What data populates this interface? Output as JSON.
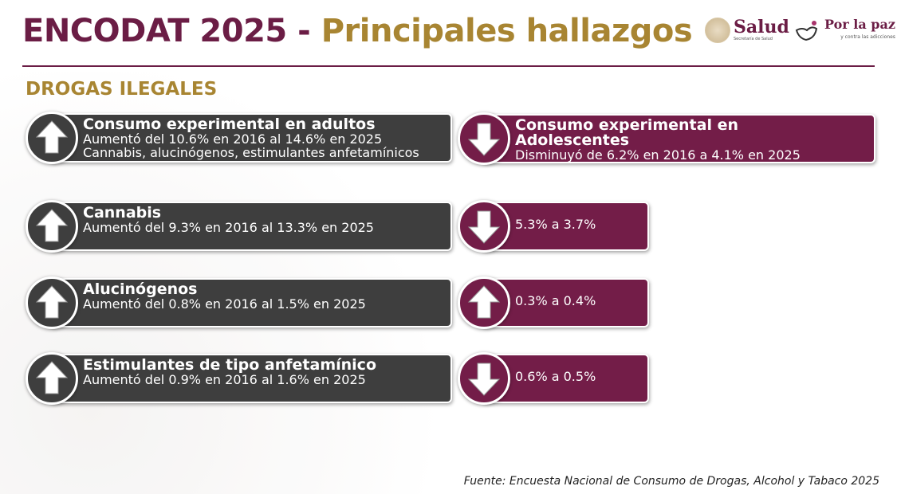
{
  "header": {
    "title_part1": "ENCODAT 2025 -",
    "title_part2": "Principales hallazgos",
    "logo_salud": "Salud",
    "logo_salud_sub": "Secretaría de Salud",
    "logo_paz": "Por la paz",
    "logo_paz_sub": "y contra las adicciones"
  },
  "section": "DROGAS ILEGALES",
  "colors": {
    "maroon": "#731d48",
    "gold": "#a88532",
    "dark": "#3e3e3e"
  },
  "adults": [
    {
      "title": "Consumo experimental en adultos",
      "lines": [
        "Aumentó del 10.6% en 2016 al 14.6% en 2025",
        "Cannabis, alucinógenos, estimulantes anfetamínicos"
      ],
      "trend": "up"
    },
    {
      "title": "Cannabis",
      "lines": [
        "Aumentó del 9.3% en 2016 al 13.3% en 2025"
      ],
      "trend": "up"
    },
    {
      "title": "Alucinógenos",
      "lines": [
        "Aumentó del 0.8% en 2016 al 1.5% en 2025"
      ],
      "trend": "up"
    },
    {
      "title": "Estimulantes de tipo anfetamínico",
      "lines": [
        "Aumentó del 0.9% en 2016 al 1.6% en 2025"
      ],
      "trend": "up"
    }
  ],
  "adolescents": [
    {
      "title": "Consumo experimental en Adolescentes",
      "lines": [
        "Disminuyó de 6.2% en 2016 a 4.1% en 2025"
      ],
      "trend": "down"
    },
    {
      "lines": [
        "5.3% a 3.7%"
      ],
      "trend": "down"
    },
    {
      "lines": [
        "0.3% a 0.4%"
      ],
      "trend": "up"
    },
    {
      "lines": [
        "0.6% a 0.5%"
      ],
      "trend": "down"
    }
  ],
  "footer": "Fuente: Encuesta Nacional de Consumo de Drogas, Alcohol y Tabaco 2025"
}
